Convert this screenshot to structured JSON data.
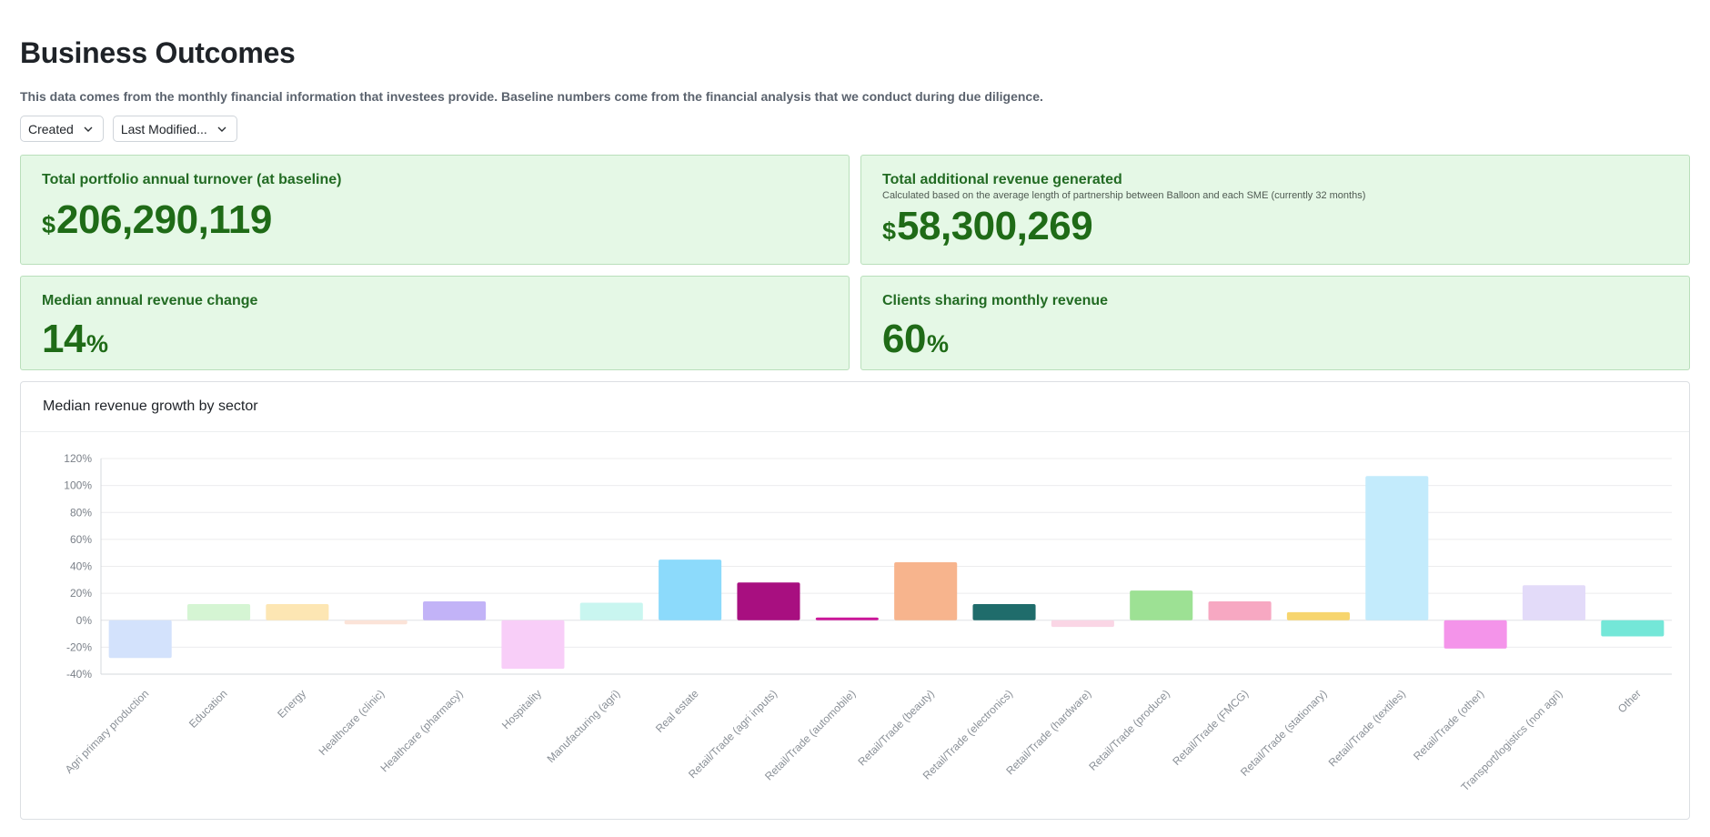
{
  "page": {
    "title": "Business Outcomes",
    "subtitle": "This data comes from the monthly financial information that investees provide. Baseline numbers come from the financial analysis that we conduct during due diligence."
  },
  "filters": [
    {
      "label": "Created"
    },
    {
      "label": "Last Modified..."
    }
  ],
  "cards": {
    "turnover": {
      "title": "Total portfolio annual turnover (at baseline)",
      "currency": "$",
      "value": "206,290,119"
    },
    "additional": {
      "title": "Total additional revenue generated",
      "note": "Calculated based on the average length of partnership between Balloon and each SME (currently 32 months)",
      "currency": "$",
      "value": "58,300,269"
    },
    "median_change": {
      "title": "Median annual revenue change",
      "value": "14",
      "unit": "%"
    },
    "clients_sharing": {
      "title": "Clients sharing monthly revenue",
      "value": "60",
      "unit": "%"
    }
  },
  "chart": {
    "title": "Median revenue growth by sector"
  },
  "chart_data": {
    "type": "bar",
    "title": "Median revenue growth by sector",
    "xlabel": "",
    "ylabel": "",
    "ylim": [
      -40,
      120
    ],
    "yticks": [
      -40,
      -20,
      0,
      20,
      40,
      60,
      80,
      100,
      120
    ],
    "ytick_suffix": "%",
    "grid": true,
    "categories": [
      "Agri primary production",
      "Education",
      "Energy",
      "Healthcare (clinic)",
      "Healthcare (pharmacy)",
      "Hospitality",
      "Manufacturing (agri)",
      "Real estate",
      "Retail/Trade (agri inputs)",
      "Retail/Trade (automobile)",
      "Retail/Trade (beauty)",
      "Retail/Trade (electronics)",
      "Retail/Trade (hardware)",
      "Retail/Trade (produce)",
      "Retail/Trade (FMCG)",
      "Retail/Trade (stationary)",
      "Retail/Trade (textiles)",
      "Retail/Trade (other)",
      "Transport/logistics (non agri)",
      "Other"
    ],
    "values": [
      -28,
      12,
      12,
      -3,
      14,
      -36,
      13,
      45,
      28,
      2,
      43,
      12,
      -5,
      22,
      14,
      6,
      107,
      -21,
      26,
      -12
    ],
    "colors": [
      "#d3e2fc",
      "#d5f5d3",
      "#fde6b3",
      "#fbe3d8",
      "#c2b3f7",
      "#f8cef8",
      "#c9f6f0",
      "#8cdafb",
      "#a80f80",
      "#cb1699",
      "#f7b48d",
      "#1f6c6b",
      "#fad6e5",
      "#9de194",
      "#f7a8c2",
      "#f7d56e",
      "#c3ebfc",
      "#f494ea",
      "#e3dbf9",
      "#74e7d8"
    ]
  }
}
